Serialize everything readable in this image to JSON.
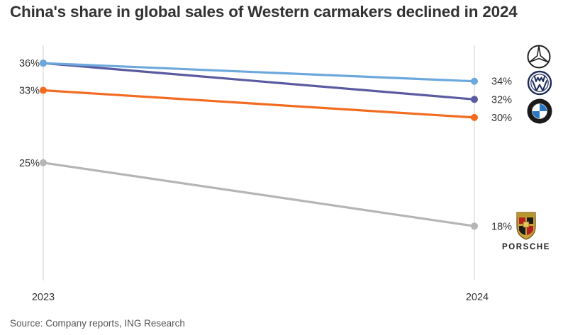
{
  "chart_data": {
    "type": "line",
    "title": "China's share in global sales of Western carmakers declined in 2024",
    "x": [
      "2023",
      "2024"
    ],
    "unit": "%",
    "series": [
      {
        "brand": "Mercedes-Benz",
        "logo": "mercedes-logo",
        "color": "#6CA8DC",
        "values": [
          36,
          34
        ],
        "labels": [
          "36%",
          "34%"
        ]
      },
      {
        "brand": "Volkswagen",
        "logo": "volkswagen-logo",
        "color": "#5A5AA0",
        "values": [
          36,
          32
        ],
        "labels": [
          "",
          "32%"
        ]
      },
      {
        "brand": "BMW",
        "logo": "bmw-logo",
        "color": "#F26B21",
        "values": [
          33,
          30
        ],
        "labels": [
          "33%",
          "30%"
        ]
      },
      {
        "brand": "Porsche",
        "logo": "porsche-logo",
        "color": "#B5B5B5",
        "values": [
          25,
          18
        ],
        "labels": [
          "25%",
          "18%"
        ]
      }
    ],
    "ylim": [
      12,
      37.5
    ],
    "grid": false,
    "legend": "none (brand logos at line ends)"
  },
  "logos": {
    "porsche_wordmark": "PORSCHE"
  },
  "source": "Source: Company reports, ING Research"
}
